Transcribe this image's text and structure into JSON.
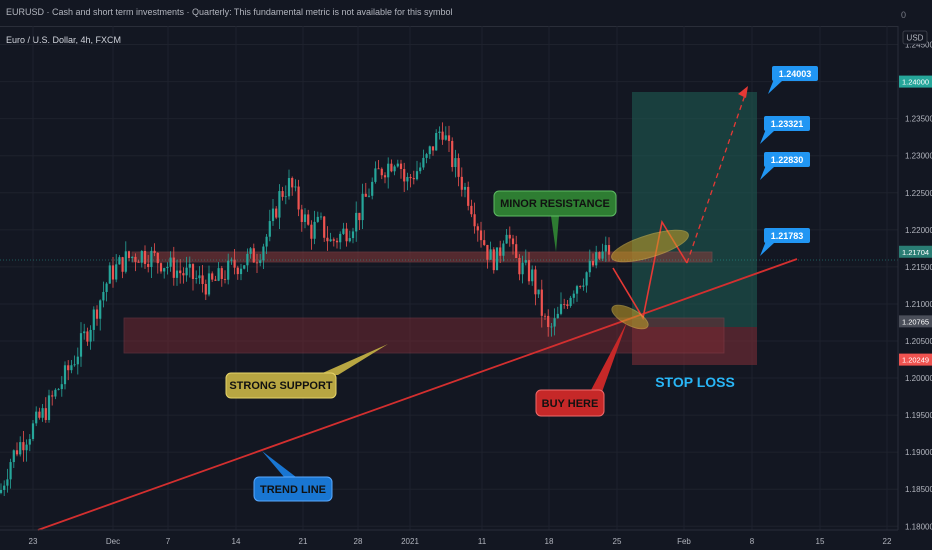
{
  "header": {
    "title": "EURUSD · Cash and short term investments · Quarterly: This fundamental metric is not available for this symbol",
    "corner_value": "0"
  },
  "legend": {
    "symbol": "Euro / U.S. Dollar, 4h, FXCM"
  },
  "currency_badge": "USD",
  "colors": {
    "background": "#131722",
    "up": "#26a69a",
    "down": "#ef5350",
    "trend_line": "#d32f2f",
    "support_zone": "#7a2a33",
    "resistance_zone": "#8a3a3a",
    "target_zone": "#1e5a52",
    "stop_zone": "#6b2b33",
    "tag_blue": "#2196f3"
  },
  "chart_data": {
    "type": "candlestick",
    "ylim": [
      1.1795,
      1.2475
    ],
    "yticks": [
      "1.24500",
      "1.24000",
      "1.23500",
      "1.23000",
      "1.22500",
      "1.22000",
      "1.21500",
      "1.21000",
      "1.20500",
      "1.20000",
      "1.19500",
      "1.19000",
      "1.18500",
      "1.18000"
    ],
    "x_ticks": [
      "23",
      "Dec",
      "7",
      "14",
      "21",
      "28",
      "2021",
      "11",
      "18",
      "25",
      "Feb",
      "8",
      "15",
      "22"
    ],
    "price_labels": [
      {
        "text": "1.24000",
        "value": 1.24,
        "color": "#26a69a"
      },
      {
        "text": "1.21704",
        "value": 1.21704,
        "color": "#2a7d74"
      },
      {
        "text": "1.20765",
        "value": 1.20765,
        "color": "#4a4e59"
      },
      {
        "text": "1.20249",
        "value": 1.20249,
        "color": "#ef5350"
      }
    ],
    "value_tags": [
      {
        "text": "1.24003",
        "value": 1.24003
      },
      {
        "text": "1.23321",
        "value": 1.23321
      },
      {
        "text": "1.22830",
        "value": 1.2283
      },
      {
        "text": "1.21783",
        "value": 1.21783
      }
    ],
    "path": [
      [
        0,
        1.1845
      ],
      [
        10,
        1.1888
      ],
      [
        18,
        1.1908
      ],
      [
        30,
        1.1928
      ],
      [
        45,
        1.1955
      ],
      [
        60,
        1.199
      ],
      [
        75,
        1.2028
      ],
      [
        90,
        1.2072
      ],
      [
        110,
        1.214
      ],
      [
        125,
        1.216
      ],
      [
        140,
        1.2168
      ],
      [
        150,
        1.2165
      ],
      [
        160,
        1.2158
      ],
      [
        170,
        1.215
      ],
      [
        180,
        1.2143
      ],
      [
        190,
        1.2138
      ],
      [
        200,
        1.213
      ],
      [
        210,
        1.2125
      ],
      [
        220,
        1.2135
      ],
      [
        232,
        1.215
      ],
      [
        245,
        1.2158
      ],
      [
        258,
        1.2168
      ],
      [
        270,
        1.22
      ],
      [
        280,
        1.2248
      ],
      [
        290,
        1.2262
      ],
      [
        300,
        1.2228
      ],
      [
        310,
        1.2198
      ],
      [
        320,
        1.2208
      ],
      [
        330,
        1.2183
      ],
      [
        340,
        1.2192
      ],
      [
        350,
        1.2205
      ],
      [
        360,
        1.2225
      ],
      [
        370,
        1.2255
      ],
      [
        380,
        1.228
      ],
      [
        390,
        1.229
      ],
      [
        398,
        1.2302
      ],
      [
        405,
        1.2262
      ],
      [
        415,
        1.2278
      ],
      [
        425,
        1.229
      ],
      [
        435,
        1.232
      ],
      [
        442,
        1.234
      ],
      [
        450,
        1.23
      ],
      [
        460,
        1.227
      ],
      [
        470,
        1.224
      ],
      [
        480,
        1.2198
      ],
      [
        490,
        1.2162
      ],
      [
        498,
        1.216
      ],
      [
        506,
        1.221
      ],
      [
        514,
        1.216
      ],
      [
        522,
        1.2148
      ],
      [
        532,
        1.2138
      ],
      [
        540,
        1.2098
      ],
      [
        548,
        1.2062
      ],
      [
        556,
        1.2075
      ],
      [
        564,
        1.21
      ],
      [
        574,
        1.2125
      ],
      [
        585,
        1.214
      ],
      [
        595,
        1.2155
      ],
      [
        605,
        1.217
      ],
      [
        612,
        1.2172
      ]
    ],
    "series": [
      {
        "name": "",
        "values": []
      }
    ]
  },
  "annotations": {
    "minor_resistance": "MINOR RESISTANCE",
    "strong_support": "STRONG SUPPORT",
    "trend_line": "TREND LINE",
    "buy_here": "BUY HERE",
    "stop_loss": "STOP LOSS"
  }
}
